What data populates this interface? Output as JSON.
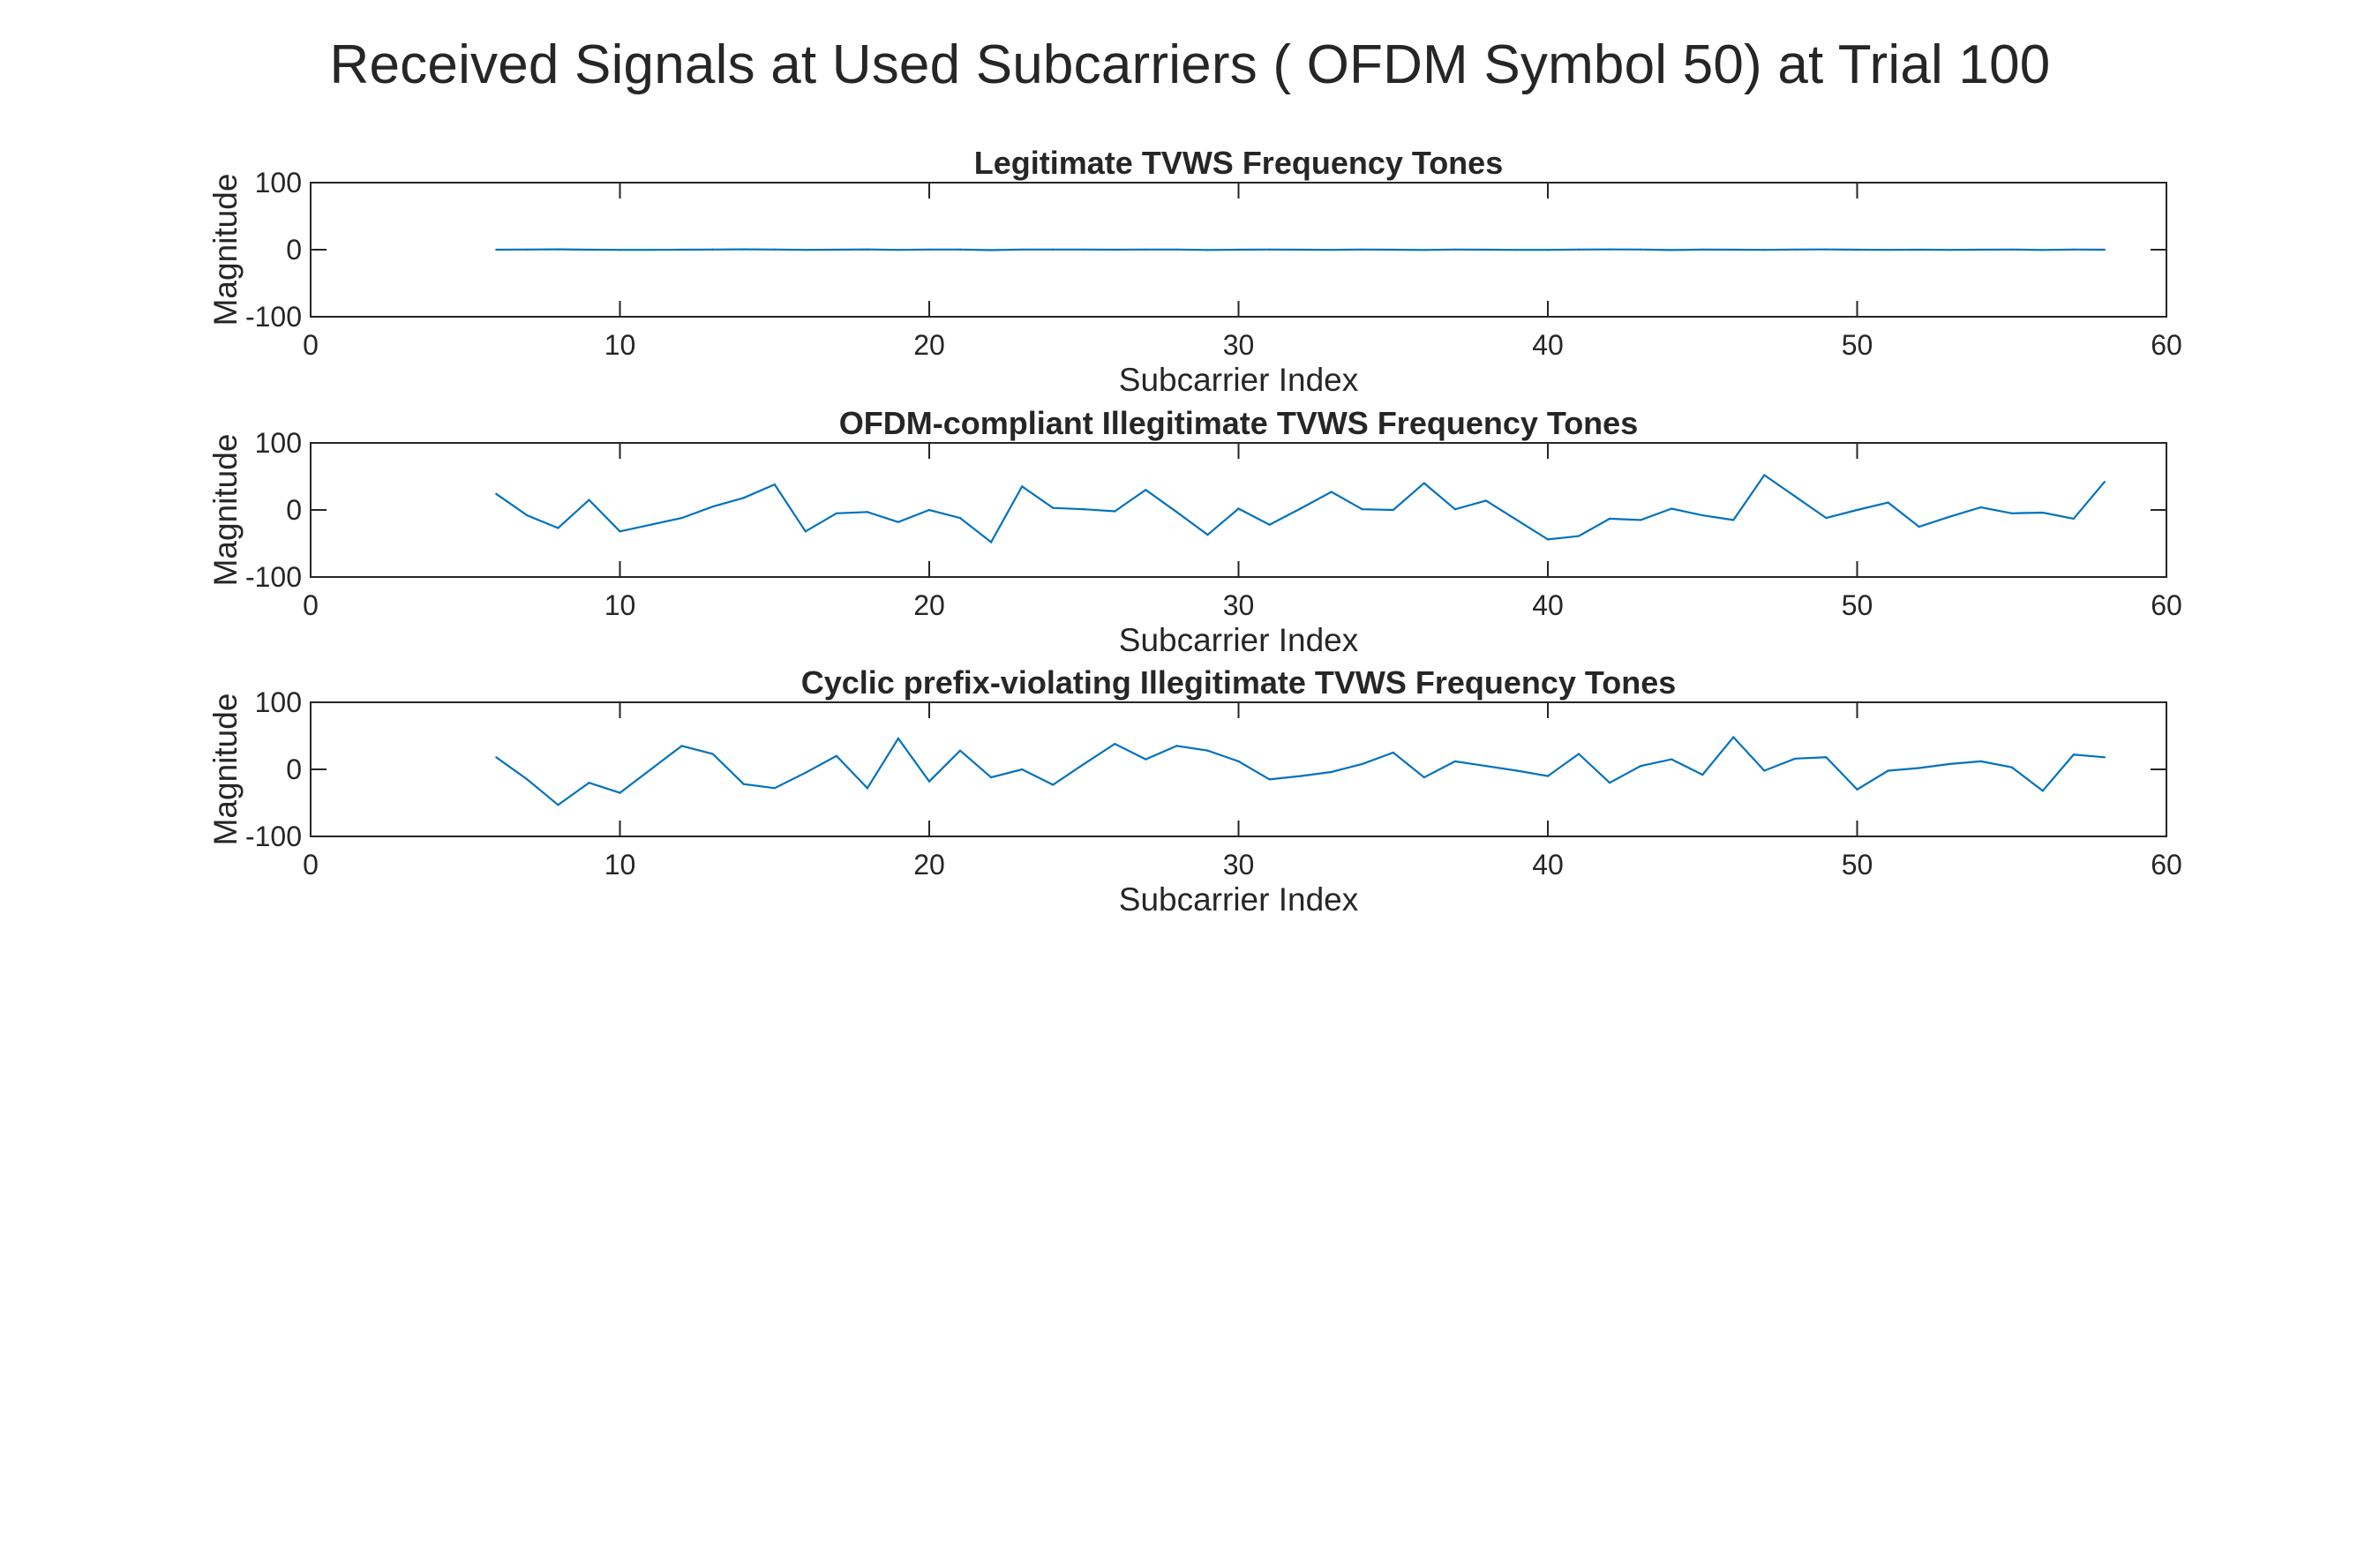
{
  "figure": {
    "title": "Received Signals at Used Subcarriers ( OFDM Symbol 50) at Trial 100",
    "line_color": "#0072BD"
  },
  "chart_data": [
    {
      "type": "line",
      "title": "Legitimate TVWS Frequency Tones",
      "xlabel": "Subcarrier Index",
      "ylabel": "Magnitude",
      "xlim": [
        0,
        60
      ],
      "ylim": [
        -100,
        100
      ],
      "xticks": [
        0,
        10,
        20,
        30,
        40,
        50,
        60
      ],
      "yticks": [
        -100,
        0,
        100
      ],
      "grid": false,
      "x": [
        6,
        7,
        8,
        9,
        10,
        11,
        12,
        13,
        14,
        15,
        16,
        17,
        18,
        19,
        20,
        21,
        22,
        23,
        24,
        25,
        26,
        27,
        28,
        29,
        30,
        31,
        32,
        33,
        34,
        35,
        36,
        37,
        38,
        39,
        40,
        41,
        42,
        43,
        44,
        45,
        46,
        47,
        48,
        49,
        50,
        51,
        52,
        53,
        54,
        55,
        56,
        57,
        58
      ],
      "values": [
        0,
        0.2,
        0.5,
        0,
        -0.3,
        -0.2,
        0,
        0.3,
        0.5,
        0.3,
        -0.2,
        0,
        0.4,
        -0.3,
        0.2,
        0.3,
        -0.6,
        0.2,
        0.3,
        0.2,
        0,
        0.3,
        0.2,
        -0.4,
        0,
        0.2,
        0,
        -0.2,
        0.2,
        0,
        -0.4,
        0.2,
        0,
        -0.2,
        -0.3,
        0.2,
        0.4,
        0.3,
        -0.5,
        0.2,
        0,
        -0.2,
        0.2,
        0.4,
        0,
        -0.2,
        0,
        -0.3,
        0,
        0.2,
        -0.4,
        0.3,
        0
      ]
    },
    {
      "type": "line",
      "title": "OFDM-compliant Illegitimate TVWS Frequency Tones",
      "xlabel": "Subcarrier Index",
      "ylabel": "Magnitude",
      "xlim": [
        0,
        60
      ],
      "ylim": [
        -100,
        100
      ],
      "xticks": [
        0,
        10,
        20,
        30,
        40,
        50,
        60
      ],
      "yticks": [
        -100,
        0,
        100
      ],
      "grid": false,
      "x": [
        6,
        7,
        8,
        9,
        10,
        11,
        12,
        13,
        14,
        15,
        16,
        17,
        18,
        19,
        20,
        21,
        22,
        23,
        24,
        25,
        26,
        27,
        28,
        29,
        30,
        31,
        32,
        33,
        34,
        35,
        36,
        37,
        38,
        39,
        40,
        41,
        42,
        43,
        44,
        45,
        46,
        47,
        48,
        49,
        50,
        51,
        52,
        53,
        54,
        55,
        56,
        57,
        58
      ],
      "values": [
        24,
        -8,
        -27,
        15,
        -32,
        -22,
        -12,
        5,
        18,
        38,
        -32,
        -5,
        -3,
        -18,
        0,
        -12,
        -48,
        35,
        3,
        1,
        -2,
        30,
        -3,
        -37,
        2,
        -22,
        2,
        27,
        1,
        0,
        40,
        1,
        14,
        -15,
        -44,
        -39,
        -13,
        -15,
        2,
        -8,
        -15,
        52,
        20,
        -12,
        0,
        11,
        -25,
        -10,
        4,
        -5,
        -4,
        -13,
        42
      ]
    },
    {
      "type": "line",
      "title": "Cyclic prefix-violating Illegitimate TVWS Frequency Tones",
      "xlabel": "Subcarrier Index",
      "ylabel": "Magnitude",
      "xlim": [
        0,
        60
      ],
      "ylim": [
        -100,
        100
      ],
      "xticks": [
        0,
        10,
        20,
        30,
        40,
        50,
        60
      ],
      "yticks": [
        -100,
        0,
        100
      ],
      "grid": false,
      "x": [
        6,
        7,
        8,
        9,
        10,
        11,
        12,
        13,
        14,
        15,
        16,
        17,
        18,
        19,
        20,
        21,
        22,
        23,
        24,
        25,
        26,
        27,
        28,
        29,
        30,
        31,
        32,
        33,
        34,
        35,
        36,
        37,
        38,
        39,
        40,
        41,
        42,
        43,
        44,
        45,
        46,
        47,
        48,
        49,
        50,
        51,
        52,
        53,
        54,
        55,
        56,
        57,
        58
      ],
      "values": [
        18,
        -15,
        -53,
        -20,
        -35,
        0,
        35,
        23,
        -22,
        -28,
        -5,
        20,
        -28,
        46,
        -18,
        28,
        -12,
        0,
        -23,
        8,
        38,
        15,
        35,
        28,
        12,
        -15,
        -10,
        -4,
        8,
        25,
        -12,
        12,
        5,
        -2,
        -10,
        23,
        -20,
        5,
        15,
        -8,
        48,
        -2,
        16,
        18,
        -30,
        -2,
        2,
        8,
        12,
        3,
        -32,
        22,
        18
      ]
    }
  ]
}
